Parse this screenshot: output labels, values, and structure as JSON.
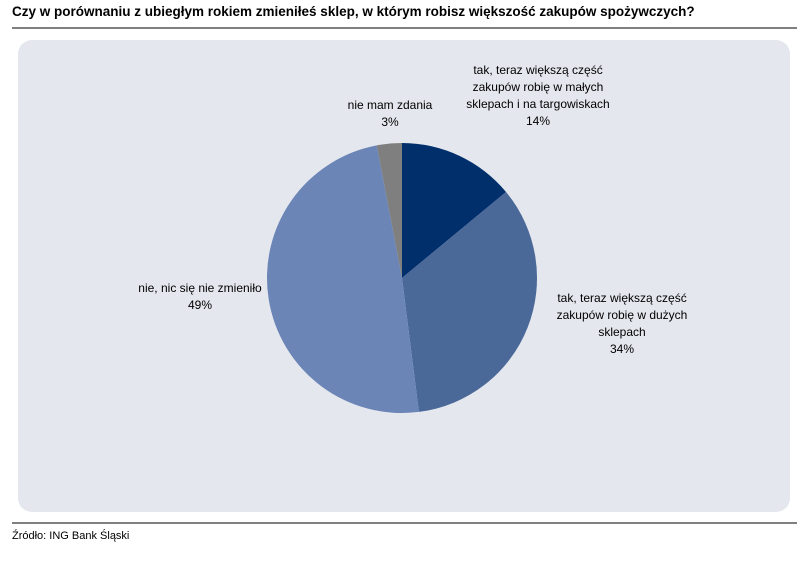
{
  "chart_data": {
    "type": "pie",
    "title": "Czy w porównaniu z ubiegłym rokiem zmieniłeś sklep, w którym robisz większość zakupów spożywczych?",
    "categories": [
      "tak, teraz większą część zakupów robię w małych sklepach i na targowiskach",
      "tak, teraz większą część zakupów robię w dużych sklepach",
      "nie, nic się nie zmieniło",
      "nie mam zdania"
    ],
    "values": [
      14,
      34,
      49,
      3
    ],
    "value_labels": [
      "14%",
      "34%",
      "49%",
      "3%"
    ],
    "colors": [
      "#002f6c",
      "#4a6898",
      "#6a85b6",
      "#7f7f7f"
    ],
    "source": "Źródło: ING Bank Śląski"
  }
}
